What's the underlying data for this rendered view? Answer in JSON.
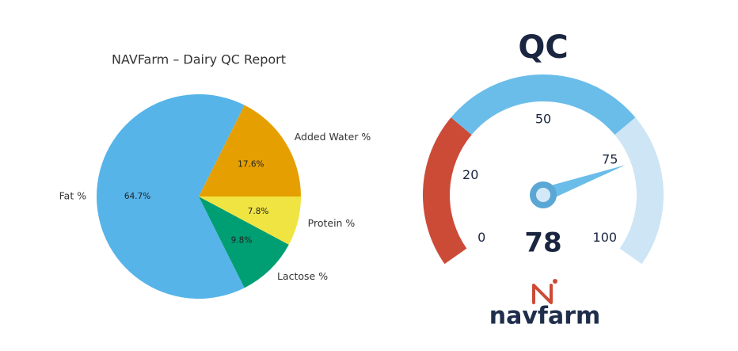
{
  "chart_data": [
    {
      "type": "pie",
      "title": "NAVFarm – Dairy QC Report",
      "categories": [
        "Added Water %",
        "Fat %",
        "Lactose %",
        "Protein %"
      ],
      "values": [
        17.6,
        64.7,
        9.8,
        7.8
      ],
      "value_labels": [
        "17.6%",
        "64.7%",
        "9.8%",
        "7.8%"
      ],
      "colors": [
        "#e69f00",
        "#56b4e9",
        "#009e73",
        "#f0e442"
      ]
    },
    {
      "type": "gauge",
      "title": "QC",
      "value": 78,
      "ylim": [
        0,
        100
      ],
      "yticks": [
        0,
        20,
        50,
        75,
        100
      ],
      "bands": [
        {
          "from": 0,
          "to": 30,
          "color": "#cc4b37"
        },
        {
          "from": 30,
          "to": 70,
          "color": "#6bbde9"
        },
        {
          "from": 70,
          "to": 100,
          "color": "#cde5f5"
        }
      ],
      "needle_color": "#6bbde9"
    }
  ],
  "logo": {
    "text": "navfarm"
  }
}
